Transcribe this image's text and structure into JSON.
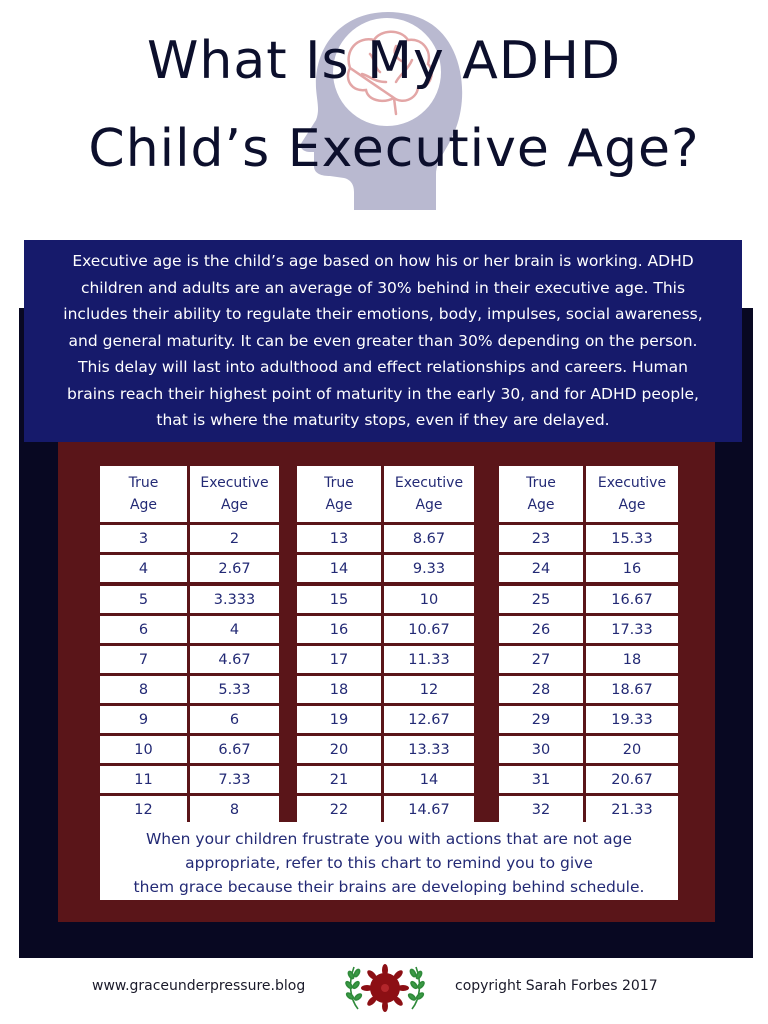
{
  "title": {
    "line1": "What Is My ADHD",
    "line2": "Child’s Executive Age?"
  },
  "icons": {
    "header_graphic": "head-with-brain-icon",
    "footer_logo": "flower-laurel-icon"
  },
  "colors": {
    "title_text": "#0c0f2c",
    "intro_background": "#161a6b",
    "frame_background": "#080822",
    "panel_background": "#5a1519",
    "cell_text": "#232a75",
    "head_silhouette": "#b9b9d0",
    "brain": "#e3a6a6"
  },
  "intro": {
    "lines": [
      "Executive age is the child’s age based on how his or her brain is working. ADHD",
      "children and adults are an average of 30% behind in their executive age. This",
      "includes their ability to regulate their emotions, body, impulses, social awareness,",
      "and general maturity. It can be even greater than 30% depending on the person.",
      "This delay will last into adulthood and effect relationships and careers. Human",
      "brains reach their highest point of maturity in the early 30, and for ADHD people,",
      "that is where the maturity stops, even if they are delayed."
    ]
  },
  "table": {
    "headers": {
      "true_age": [
        "True",
        "Age"
      ],
      "executive_age": [
        "Executive",
        "Age"
      ]
    },
    "columns": [
      {
        "rows": [
          {
            "true_age": "3",
            "executive_age": "2"
          },
          {
            "true_age": "4",
            "executive_age": "2.67"
          },
          {
            "true_age": "5",
            "executive_age": "3.333"
          },
          {
            "true_age": "6",
            "executive_age": "4"
          },
          {
            "true_age": "7",
            "executive_age": "4.67"
          },
          {
            "true_age": "8",
            "executive_age": "5.33"
          },
          {
            "true_age": "9",
            "executive_age": "6"
          },
          {
            "true_age": "10",
            "executive_age": "6.67"
          },
          {
            "true_age": "11",
            "executive_age": "7.33"
          },
          {
            "true_age": "12",
            "executive_age": "8"
          }
        ]
      },
      {
        "rows": [
          {
            "true_age": "13",
            "executive_age": "8.67"
          },
          {
            "true_age": "14",
            "executive_age": "9.33"
          },
          {
            "true_age": "15",
            "executive_age": "10"
          },
          {
            "true_age": "16",
            "executive_age": "10.67"
          },
          {
            "true_age": "17",
            "executive_age": "11.33"
          },
          {
            "true_age": "18",
            "executive_age": "12"
          },
          {
            "true_age": "19",
            "executive_age": "12.67"
          },
          {
            "true_age": "20",
            "executive_age": "13.33"
          },
          {
            "true_age": "21",
            "executive_age": "14"
          },
          {
            "true_age": "22",
            "executive_age": "14.67"
          }
        ]
      },
      {
        "rows": [
          {
            "true_age": "23",
            "executive_age": "15.33"
          },
          {
            "true_age": "24",
            "executive_age": "16"
          },
          {
            "true_age": "25",
            "executive_age": "16.67"
          },
          {
            "true_age": "26",
            "executive_age": "17.33"
          },
          {
            "true_age": "27",
            "executive_age": "18"
          },
          {
            "true_age": "28",
            "executive_age": "18.67"
          },
          {
            "true_age": "29",
            "executive_age": "19.33"
          },
          {
            "true_age": "30",
            "executive_age": "20"
          },
          {
            "true_age": "31",
            "executive_age": "20.67"
          },
          {
            "true_age": "32",
            "executive_age": "21.33"
          }
        ]
      }
    ]
  },
  "note": {
    "lines": [
      "When your children frustrate you with actions that are not age",
      "appropriate, refer to this chart to remind you to give",
      "them grace because their brains are developing behind schedule."
    ]
  },
  "footer": {
    "website": "www.graceunderpressure.blog",
    "copyright": "copyright Sarah Forbes 2017"
  }
}
